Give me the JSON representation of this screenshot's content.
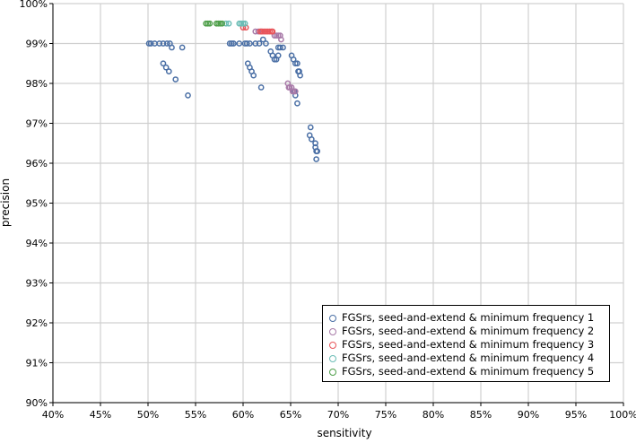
{
  "chart_data": {
    "type": "scatter",
    "title": "",
    "xlabel": "sensitivity",
    "ylabel": "precision",
    "xlim": [
      0.4,
      1.0
    ],
    "ylim": [
      0.9,
      1.0
    ],
    "x_ticks": [
      "40%",
      "45%",
      "50%",
      "55%",
      "60%",
      "65%",
      "70%",
      "75%",
      "80%",
      "85%",
      "90%",
      "95%",
      "100%"
    ],
    "y_ticks": [
      "90%",
      "91%",
      "92%",
      "93%",
      "94%",
      "95%",
      "96%",
      "97%",
      "98%",
      "99%",
      "100%"
    ],
    "grid": true,
    "legend_position": "bottom-right",
    "series": [
      {
        "name": "FGSrs, seed-and-extend & minimum frequency 1",
        "color": "#4a6fa5",
        "points": [
          [
            0.501,
            0.99
          ],
          [
            0.503,
            0.99
          ],
          [
            0.507,
            0.99
          ],
          [
            0.512,
            0.99
          ],
          [
            0.516,
            0.99
          ],
          [
            0.52,
            0.99
          ],
          [
            0.523,
            0.99
          ],
          [
            0.525,
            0.989
          ],
          [
            0.536,
            0.989
          ],
          [
            0.516,
            0.985
          ],
          [
            0.519,
            0.984
          ],
          [
            0.522,
            0.983
          ],
          [
            0.529,
            0.981
          ],
          [
            0.542,
            0.977
          ],
          [
            0.586,
            0.99
          ],
          [
            0.588,
            0.99
          ],
          [
            0.59,
            0.99
          ],
          [
            0.596,
            0.99
          ],
          [
            0.602,
            0.99
          ],
          [
            0.604,
            0.99
          ],
          [
            0.607,
            0.99
          ],
          [
            0.613,
            0.99
          ],
          [
            0.617,
            0.99
          ],
          [
            0.621,
            0.991
          ],
          [
            0.624,
            0.99
          ],
          [
            0.605,
            0.985
          ],
          [
            0.607,
            0.984
          ],
          [
            0.609,
            0.983
          ],
          [
            0.611,
            0.982
          ],
          [
            0.619,
            0.979
          ],
          [
            0.629,
            0.988
          ],
          [
            0.631,
            0.987
          ],
          [
            0.633,
            0.986
          ],
          [
            0.635,
            0.986
          ],
          [
            0.637,
            0.987
          ],
          [
            0.639,
            0.989
          ],
          [
            0.642,
            0.989
          ],
          [
            0.637,
            0.989
          ],
          [
            0.651,
            0.987
          ],
          [
            0.653,
            0.986
          ],
          [
            0.655,
            0.985
          ],
          [
            0.657,
            0.985
          ],
          [
            0.659,
            0.983
          ],
          [
            0.66,
            0.982
          ],
          [
            0.658,
            0.983
          ],
          [
            0.654,
            0.978
          ],
          [
            0.655,
            0.977
          ],
          [
            0.657,
            0.975
          ],
          [
            0.671,
            0.969
          ],
          [
            0.67,
            0.967
          ],
          [
            0.672,
            0.966
          ],
          [
            0.676,
            0.965
          ],
          [
            0.677,
            0.963
          ],
          [
            0.676,
            0.964
          ],
          [
            0.678,
            0.963
          ],
          [
            0.677,
            0.961
          ]
        ]
      },
      {
        "name": "FGSrs, seed-and-extend & minimum frequency 2",
        "color": "#a87aa8",
        "points": [
          [
            0.613,
            0.993
          ],
          [
            0.616,
            0.993
          ],
          [
            0.619,
            0.993
          ],
          [
            0.633,
            0.992
          ],
          [
            0.635,
            0.992
          ],
          [
            0.637,
            0.992
          ],
          [
            0.639,
            0.992
          ],
          [
            0.64,
            0.991
          ],
          [
            0.647,
            0.98
          ],
          [
            0.648,
            0.979
          ],
          [
            0.649,
            0.979
          ],
          [
            0.651,
            0.979
          ],
          [
            0.652,
            0.978
          ],
          [
            0.653,
            0.978
          ],
          [
            0.655,
            0.978
          ]
        ]
      },
      {
        "name": "FGSrs, seed-and-extend & minimum frequency 3",
        "color": "#e8555a",
        "points": [
          [
            0.6,
            0.994
          ],
          [
            0.603,
            0.994
          ],
          [
            0.618,
            0.993
          ],
          [
            0.62,
            0.993
          ],
          [
            0.622,
            0.993
          ],
          [
            0.624,
            0.993
          ],
          [
            0.626,
            0.993
          ],
          [
            0.628,
            0.993
          ],
          [
            0.63,
            0.993
          ],
          [
            0.631,
            0.993
          ]
        ]
      },
      {
        "name": "FGSrs, seed-and-extend & minimum frequency 4",
        "color": "#6cbdb6",
        "points": [
          [
            0.582,
            0.995
          ],
          [
            0.585,
            0.995
          ],
          [
            0.596,
            0.995
          ],
          [
            0.598,
            0.995
          ],
          [
            0.6,
            0.995
          ],
          [
            0.602,
            0.995
          ]
        ]
      },
      {
        "name": "FGSrs, seed-and-extend & minimum frequency 5",
        "color": "#4f9f4a",
        "points": [
          [
            0.561,
            0.995
          ],
          [
            0.563,
            0.995
          ],
          [
            0.565,
            0.995
          ],
          [
            0.572,
            0.995
          ],
          [
            0.574,
            0.995
          ],
          [
            0.576,
            0.995
          ],
          [
            0.578,
            0.995
          ]
        ]
      }
    ]
  }
}
